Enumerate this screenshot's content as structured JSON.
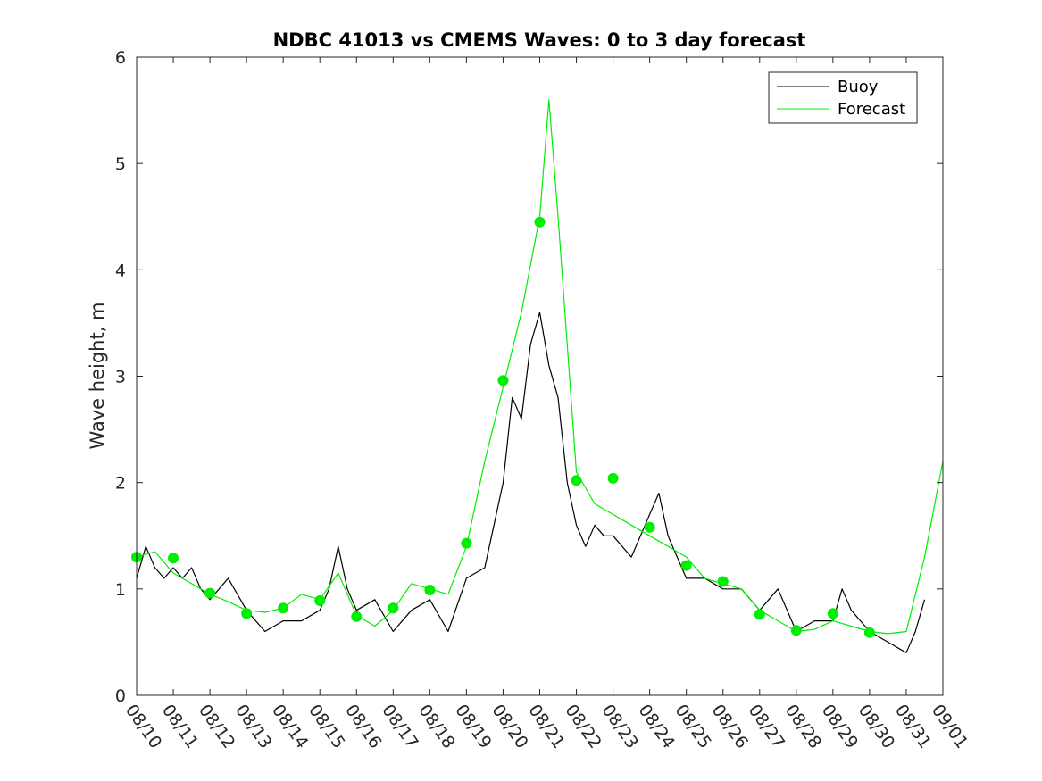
{
  "chart_data": {
    "type": "line",
    "title": "NDBC 41013 vs CMEMS Waves: 0 to 3 day forecast",
    "xlabel": "",
    "ylabel": "Wave height, m",
    "ylim": [
      0,
      6
    ],
    "xlim": [
      "2018-08-10",
      "2018-09-01"
    ],
    "x_tick_labels": [
      "08/10",
      "08/11",
      "08/12",
      "08/13",
      "08/14",
      "08/15",
      "08/16",
      "08/17",
      "08/18",
      "08/19",
      "08/20",
      "08/21",
      "08/22",
      "08/23",
      "08/24",
      "08/25",
      "08/26",
      "08/27",
      "08/28",
      "08/29",
      "08/30",
      "08/31",
      "09/01"
    ],
    "y_tick_labels": [
      "0",
      "1",
      "2",
      "3",
      "4",
      "5",
      "6"
    ],
    "grid": false,
    "legend": {
      "position": "top-right",
      "entries": [
        "Buoy",
        "Forecast"
      ]
    },
    "colors": {
      "buoy": "#000000",
      "forecast": "#00ee00"
    },
    "series": [
      {
        "name": "Buoy",
        "x": [
          "2018-08-10",
          "2018-08-10 06:00",
          "2018-08-10 12:00",
          "2018-08-10 18:00",
          "2018-08-11",
          "2018-08-11 06:00",
          "2018-08-11 12:00",
          "2018-08-11 18:00",
          "2018-08-12",
          "2018-08-12 12:00",
          "2018-08-13",
          "2018-08-13 12:00",
          "2018-08-14",
          "2018-08-14 12:00",
          "2018-08-15",
          "2018-08-15 06:00",
          "2018-08-15 12:00",
          "2018-08-15 18:00",
          "2018-08-16",
          "2018-08-16 12:00",
          "2018-08-17",
          "2018-08-17 12:00",
          "2018-08-18",
          "2018-08-18 12:00",
          "2018-08-19",
          "2018-08-19 12:00",
          "2018-08-20",
          "2018-08-20 06:00",
          "2018-08-20 12:00",
          "2018-08-20 18:00",
          "2018-08-21",
          "2018-08-21 06:00",
          "2018-08-21 12:00",
          "2018-08-21 18:00",
          "2018-08-22",
          "2018-08-22 06:00",
          "2018-08-22 12:00",
          "2018-08-22 18:00",
          "2018-08-23",
          "2018-08-23 12:00",
          "2018-08-24",
          "2018-08-24 06:00",
          "2018-08-24 12:00",
          "2018-08-24 18:00",
          "2018-08-25",
          "2018-08-25 12:00",
          "2018-08-26",
          "2018-08-26 12:00",
          "2018-08-27",
          "2018-08-27 12:00",
          "2018-08-28",
          "2018-08-28 12:00",
          "2018-08-29",
          "2018-08-29 06:00",
          "2018-08-29 12:00",
          "2018-08-30",
          "2018-08-30 12:00",
          "2018-08-31",
          "2018-08-31 06:00",
          "2018-08-31 12:00"
        ],
        "y": [
          1.1,
          1.4,
          1.2,
          1.1,
          1.2,
          1.1,
          1.2,
          1.0,
          0.9,
          1.1,
          0.8,
          0.6,
          0.7,
          0.7,
          0.8,
          1.0,
          1.4,
          1.0,
          0.8,
          0.9,
          0.6,
          0.8,
          0.9,
          0.6,
          1.1,
          1.2,
          2.0,
          2.8,
          2.6,
          3.3,
          3.6,
          3.1,
          2.8,
          2.0,
          1.6,
          1.4,
          1.6,
          1.5,
          1.5,
          1.3,
          1.7,
          1.9,
          1.5,
          1.3,
          1.1,
          1.1,
          1.0,
          1.0,
          0.8,
          1.0,
          0.6,
          0.7,
          0.7,
          1.0,
          0.8,
          0.6,
          0.5,
          0.4,
          0.6,
          0.9
        ]
      },
      {
        "name": "Forecast",
        "x": [
          "2018-08-10",
          "2018-08-10 12:00",
          "2018-08-11",
          "2018-08-11 12:00",
          "2018-08-12",
          "2018-08-12 12:00",
          "2018-08-13",
          "2018-08-13 12:00",
          "2018-08-14",
          "2018-08-14 12:00",
          "2018-08-15",
          "2018-08-15 12:00",
          "2018-08-16",
          "2018-08-16 12:00",
          "2018-08-17",
          "2018-08-17 12:00",
          "2018-08-18",
          "2018-08-18 12:00",
          "2018-08-19",
          "2018-08-19 12:00",
          "2018-08-20",
          "2018-08-20 12:00",
          "2018-08-21",
          "2018-08-21 06:00",
          "2018-08-21 12:00",
          "2018-08-22",
          "2018-08-22 12:00",
          "2018-08-23",
          "2018-08-23 12:00",
          "2018-08-24",
          "2018-08-24 12:00",
          "2018-08-25",
          "2018-08-25 12:00",
          "2018-08-26",
          "2018-08-26 12:00",
          "2018-08-27",
          "2018-08-27 12:00",
          "2018-08-28",
          "2018-08-28 12:00",
          "2018-08-29",
          "2018-08-29 12:00",
          "2018-08-30",
          "2018-08-30 12:00",
          "2018-08-31",
          "2018-08-31 12:00",
          "2018-09-01"
        ],
        "y": [
          1.3,
          1.35,
          1.15,
          1.05,
          0.95,
          0.88,
          0.8,
          0.78,
          0.82,
          0.95,
          0.9,
          1.15,
          0.75,
          0.65,
          0.8,
          1.05,
          1.0,
          0.95,
          1.4,
          2.2,
          2.9,
          3.6,
          4.5,
          5.6,
          4.5,
          2.1,
          1.8,
          1.7,
          1.6,
          1.5,
          1.4,
          1.3,
          1.1,
          1.05,
          1.0,
          0.8,
          0.7,
          0.6,
          0.62,
          0.7,
          0.65,
          0.6,
          0.58,
          0.6,
          1.3,
          2.2
        ]
      }
    ],
    "markers": {
      "name": "Forecast",
      "x": [
        "2018-08-10",
        "2018-08-11",
        "2018-08-12",
        "2018-08-13",
        "2018-08-14",
        "2018-08-15",
        "2018-08-16",
        "2018-08-17",
        "2018-08-18",
        "2018-08-19",
        "2018-08-20",
        "2018-08-21",
        "2018-08-22",
        "2018-08-23",
        "2018-08-24",
        "2018-08-25",
        "2018-08-26",
        "2018-08-27",
        "2018-08-28",
        "2018-08-29",
        "2018-08-30"
      ],
      "y": [
        1.3,
        1.29,
        0.96,
        0.77,
        0.82,
        0.89,
        0.74,
        0.82,
        0.99,
        1.43,
        2.96,
        4.45,
        2.02,
        2.04,
        1.58,
        1.22,
        1.07,
        0.76,
        0.61,
        0.77,
        0.59
      ]
    }
  }
}
